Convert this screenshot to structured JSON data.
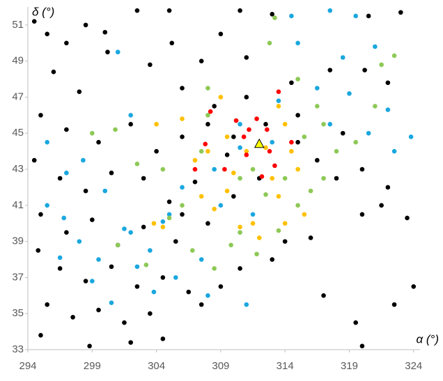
{
  "chart_data": {
    "type": "scatter",
    "x_label": "α (°)",
    "y_label": "δ (°)",
    "xlim": [
      294,
      324.5
    ],
    "ylim": [
      33,
      52
    ],
    "xticks": [
      294,
      299,
      304,
      309,
      314,
      319,
      324
    ],
    "yticks": [
      33,
      35,
      37,
      39,
      41,
      43,
      45,
      47,
      49,
      51
    ],
    "grid": false,
    "series": [
      {
        "color": "#000000",
        "marker": "circle",
        "x": [
          294.5,
          295.5,
          297,
          298.5,
          300,
          302.5,
          305,
          296,
          298,
          300.2,
          303.5,
          306,
          295,
          297,
          299.5,
          302,
          304,
          306,
          308,
          310,
          294.5,
          296.5,
          298.5,
          300.5,
          303,
          305,
          307,
          309.5,
          311,
          312.5,
          295,
          297,
          299,
          301,
          303,
          305.5,
          308,
          294.8,
          296.5,
          298.5,
          300.5,
          302.5,
          304.5,
          306.5,
          295.5,
          297.5,
          299.5,
          301.5,
          303.5,
          295,
          298.8,
          302,
          304.5,
          307.5,
          309,
          310.5,
          313,
          314,
          316,
          317,
          319.5,
          322.5,
          324,
          323.5,
          321.5,
          320,
          318,
          320,
          322,
          316.5,
          315,
          317.5,
          320.2,
          322,
          323,
          320.5,
          313,
          310.5,
          309,
          311,
          314.5,
          307.5,
          305.2,
          308.5,
          310,
          312,
          306,
          315,
          318.5,
          320
        ],
        "values": [
          51.2,
          50.5,
          50,
          51,
          50.6,
          51.8,
          51.8,
          48.4,
          47.3,
          49.5,
          48.8,
          47.5,
          46,
          45.2,
          44.5,
          45.5,
          44,
          44.8,
          45.5,
          44.8,
          43.5,
          42.5,
          41.8,
          42.8,
          42.5,
          41.2,
          42.3,
          43.8,
          47,
          45.5,
          40.5,
          39.5,
          40.2,
          38.8,
          39.8,
          39,
          40,
          38.5,
          37.5,
          36.8,
          37.6,
          36.5,
          37,
          36.2,
          35.5,
          34.8,
          35.2,
          34.5,
          35,
          33.8,
          33.2,
          33.4,
          33.6,
          35.5,
          36.5,
          37.5,
          38,
          39,
          39.2,
          36,
          34.5,
          35.5,
          36.5,
          40.3,
          41,
          40.5,
          42.5,
          43,
          42,
          43.5,
          46,
          48.5,
          48.5,
          47.8,
          51.7,
          51.5,
          51.6,
          51.8,
          50.5,
          49.2,
          47.8,
          49,
          50,
          46.5,
          41.5,
          42.5,
          40.5,
          44.5,
          45,
          33.2
        ]
      },
      {
        "color": "#1aa7df",
        "marker": "circle",
        "x": [
          295.5,
          297,
          298.3,
          300,
          301,
          302,
          303.5,
          304.5,
          301.5,
          302.5,
          298,
          296.5,
          299,
          300.5,
          303.8,
          305.5,
          307.5,
          308,
          306,
          308.5,
          309,
          310.5,
          311.5,
          311,
          313.5,
          314.5,
          315,
          317.5,
          319.5,
          318.5,
          321,
          322,
          323.8,
          319,
          320.5,
          322.5,
          316.5,
          317.5,
          313,
          310.5,
          305,
          302,
          299.5,
          296.8,
          295.5
        ],
        "values": [
          44.5,
          42.8,
          43.5,
          41.8,
          49.5,
          46,
          38.5,
          40.1,
          39.7,
          37.6,
          39,
          38.1,
          36.8,
          35.6,
          36.2,
          37,
          38,
          36,
          42,
          43,
          41,
          45.5,
          40.5,
          35.5,
          46.8,
          51.5,
          50,
          51.8,
          51.5,
          49.2,
          49.8,
          46.3,
          44.8,
          47.2,
          45,
          44,
          47.5,
          45.5,
          44.5,
          44.2,
          40.5,
          39.5,
          38,
          40.3,
          41
        ]
      },
      {
        "color": "#8dc956",
        "marker": "circle",
        "x": [
          304.5,
          305,
          306.8,
          307.5,
          308,
          308.5,
          309.8,
          310.5,
          311.8,
          312.5,
          313.5,
          315,
          316,
          317,
          318,
          319.5,
          316.5,
          315.5,
          314,
          312.8,
          313.2,
          315,
          317,
          321,
          321.5,
          322.5,
          303.2,
          301,
          302.5,
          308,
          310.5,
          311.5,
          299,
          300.8,
          306
        ],
        "values": [
          43,
          40.3,
          38.5,
          44,
          46,
          37.5,
          38.8,
          39.5,
          38.3,
          41.6,
          39.6,
          41,
          41.8,
          42.5,
          44,
          44.5,
          46.5,
          44.8,
          42.5,
          50,
          51.4,
          48,
          45.5,
          46.5,
          48.8,
          49.3,
          37.7,
          38.8,
          43.3,
          47.5,
          42.5,
          43,
          45,
          45.2,
          41
        ]
      },
      {
        "color": "#ffc000",
        "marker": "circle",
        "x": [
          304,
          307,
          307.5,
          308.5,
          309,
          310,
          310.5,
          311.5,
          312,
          312.5,
          313,
          313.5,
          314,
          314.5,
          315,
          315.5,
          308,
          309.5,
          311,
          313.5,
          314,
          303.8,
          304.5,
          306,
          309.5
        ],
        "values": [
          45.5,
          43.5,
          41.5,
          40.8,
          47,
          42.8,
          39.8,
          40,
          39.2,
          44.2,
          42.5,
          41.5,
          40,
          44,
          43,
          40.5,
          44,
          44.8,
          44,
          46.5,
          45.5,
          40,
          39.8,
          45.8,
          41.8
        ]
      },
      {
        "color": "#ff0000",
        "marker": "circle",
        "x": [
          307.8,
          308.2,
          309.3,
          310.2,
          311.2,
          311.8,
          312.6,
          313.2,
          313.5,
          314.5,
          312.2,
          310.8,
          307,
          311,
          312.8
        ],
        "values": [
          44.4,
          46.2,
          43,
          45.7,
          45.2,
          45.8,
          45.2,
          43.2,
          47.3,
          44.5,
          42.6,
          44.8,
          43,
          43.8,
          44
        ]
      },
      {
        "color": "#ffff00",
        "marker": "triangle",
        "x": [
          312.0
        ],
        "values": [
          44.4
        ]
      }
    ]
  }
}
